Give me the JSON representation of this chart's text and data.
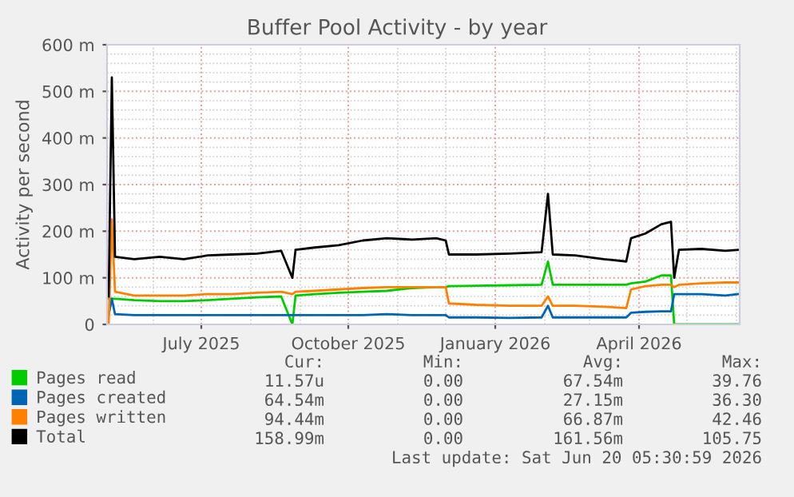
{
  "chart_data": {
    "type": "line",
    "title": "Buffer Pool Activity - by year",
    "ylabel": "Activity per second",
    "x": [
      "2025-05-04",
      "2025-05-06",
      "2025-05-08",
      "2025-05-20",
      "2025-06-05",
      "2025-06-20",
      "2025-07-05",
      "2025-07-20",
      "2025-08-05",
      "2025-08-20",
      "2025-08-27",
      "2025-08-29",
      "2025-09-10",
      "2025-09-25",
      "2025-10-10",
      "2025-10-25",
      "2025-11-10",
      "2025-11-25",
      "2025-12-01",
      "2025-12-03",
      "2025-12-20",
      "2026-01-10",
      "2026-01-30",
      "2026-02-03",
      "2026-02-06",
      "2026-02-20",
      "2026-03-10",
      "2026-03-24",
      "2026-03-27",
      "2026-04-05",
      "2026-04-15",
      "2026-04-21",
      "2026-04-23",
      "2026-04-26",
      "2026-05-10",
      "2026-05-25",
      "2026-06-02"
    ],
    "series": [
      {
        "name": "Pages read",
        "color": "#00cc00",
        "values": [
          55,
          55,
          55,
          52,
          50,
          50,
          52,
          55,
          58,
          60,
          0,
          62,
          65,
          68,
          70,
          72,
          78,
          80,
          80,
          82,
          83,
          84,
          85,
          135,
          85,
          85,
          85,
          85,
          88,
          92,
          105,
          105,
          0,
          0,
          0,
          0,
          0
        ]
      },
      {
        "name": "Pages created",
        "color": "#0066b3",
        "values": [
          20,
          55,
          22,
          20,
          20,
          20,
          20,
          20,
          20,
          20,
          20,
          20,
          20,
          20,
          20,
          22,
          20,
          20,
          20,
          15,
          15,
          14,
          15,
          40,
          15,
          15,
          15,
          15,
          25,
          27,
          28,
          28,
          65,
          65,
          65,
          62,
          65
        ]
      },
      {
        "name": "Pages written",
        "color": "#ff8000",
        "values": [
          0,
          225,
          70,
          62,
          62,
          62,
          65,
          65,
          68,
          70,
          65,
          70,
          72,
          75,
          78,
          80,
          80,
          80,
          80,
          45,
          42,
          40,
          40,
          60,
          40,
          40,
          38,
          35,
          75,
          82,
          85,
          85,
          80,
          85,
          88,
          90,
          90
        ]
      },
      {
        "name": "Total",
        "color": "#000000",
        "values": [
          60,
          530,
          145,
          140,
          145,
          140,
          148,
          150,
          152,
          158,
          100,
          160,
          165,
          170,
          180,
          185,
          182,
          185,
          180,
          150,
          150,
          152,
          155,
          280,
          150,
          148,
          140,
          135,
          185,
          195,
          215,
          220,
          100,
          160,
          162,
          158,
          160
        ]
      }
    ],
    "xlim": [
      "2025-05-03",
      "2026-06-03"
    ],
    "xticks": [
      {
        "value": "2025-07-01",
        "label": "July 2025"
      },
      {
        "value": "2025-10-01",
        "label": "October 2025"
      },
      {
        "value": "2026-01-01",
        "label": "January 2026"
      },
      {
        "value": "2026-04-01",
        "label": "April 2026"
      }
    ],
    "ylim": [
      0,
      600
    ],
    "yticks": [
      0,
      {
        "value": 100,
        "label": "100 m"
      },
      {
        "value": 200,
        "label": "200 m"
      },
      {
        "value": 300,
        "label": "300 m"
      },
      {
        "value": 400,
        "label": "400 m"
      },
      {
        "value": 500,
        "label": "500 m"
      },
      {
        "value": 600,
        "label": "600 m"
      }
    ],
    "grid": true,
    "legend": "bottom",
    "marker": "none",
    "line_style": "solid",
    "annotations": [
      "Cur:",
      "Min:",
      "Avg:",
      "Max:",
      "11.57u",
      "0.00",
      "67.54m",
      "39.76",
      "64.54m",
      "0.00",
      "27.15m",
      "36.30",
      "94.44m",
      "0.00",
      "66.87m",
      "42.46",
      "158.99m",
      "0.00",
      "161.56m",
      "105.75",
      "Last update: Sat Jun 20 05:30:59 2026"
    ]
  }
}
